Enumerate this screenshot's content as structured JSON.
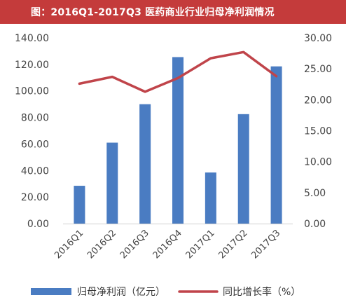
{
  "header": {
    "title": "图：2016Q1-2017Q3 医药商业行业归母净利润情况"
  },
  "colors": {
    "title_bg": "#c43b3b",
    "bar": "#4a7cc2",
    "line": "#c0444a"
  },
  "chart_data": {
    "type": "bar",
    "categories": [
      "2016Q1",
      "2016Q2",
      "2016Q3",
      "2016Q4",
      "2017Q1",
      "2017Q2",
      "2017Q3"
    ],
    "series": [
      {
        "name": "归母净利润（亿元）",
        "type": "bar",
        "axis": "left",
        "values": [
          28.5,
          61.0,
          90.0,
          125.5,
          38.5,
          82.5,
          118.5
        ]
      },
      {
        "name": "同比增长率（%）",
        "type": "line",
        "axis": "right",
        "values": [
          22.6,
          23.7,
          21.3,
          23.5,
          26.7,
          27.7,
          23.8
        ]
      }
    ],
    "left_axis": {
      "ylim": [
        0,
        140
      ],
      "ticks": [
        "0.00",
        "20.00",
        "40.00",
        "60.00",
        "80.00",
        "100.00",
        "120.00",
        "140.00"
      ]
    },
    "right_axis": {
      "ylim": [
        0,
        30
      ],
      "ticks": [
        "0.00",
        "5.00",
        "10.00",
        "15.00",
        "20.00",
        "25.00",
        "30.00"
      ]
    },
    "grid": false,
    "legend_position": "bottom"
  }
}
